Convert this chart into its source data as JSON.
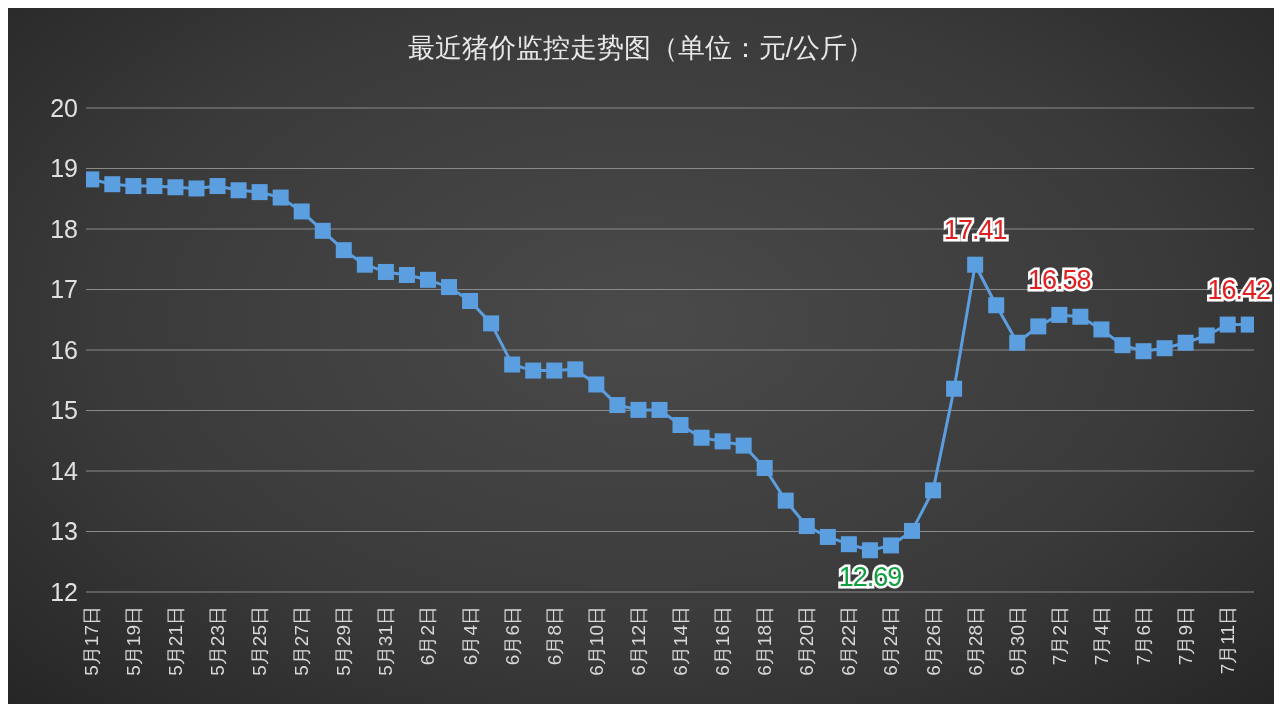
{
  "chart_data": {
    "type": "line",
    "title": "最近猪价监控走势图（单位：元/公斤）",
    "categories": [
      "5月17日",
      null,
      "5月19日",
      null,
      "5月21日",
      null,
      "5月23日",
      null,
      "5月25日",
      null,
      "5月27日",
      null,
      "5月29日",
      null,
      "5月31日",
      null,
      "6月2日",
      null,
      "6月4日",
      null,
      "6月6日",
      null,
      "6月8日",
      null,
      "6月10日",
      null,
      "6月12日",
      null,
      "6月14日",
      null,
      "6月16日",
      null,
      "6月18日",
      null,
      "6月20日",
      null,
      "6月22日",
      null,
      "6月24日",
      null,
      "6月26日",
      null,
      "6月28日",
      null,
      "6月30日",
      null,
      "7月2日",
      null,
      "7月4日",
      null,
      "7月6日",
      null,
      "7月9日",
      null,
      "7月11日",
      null
    ],
    "series": [
      {
        "color": "#5b9fe0",
        "values": [
          18.82,
          18.74,
          18.71,
          18.71,
          18.69,
          18.67,
          18.71,
          18.64,
          18.61,
          18.52,
          18.29,
          17.97,
          17.65,
          17.41,
          17.29,
          17.24,
          17.16,
          17.04,
          16.81,
          16.44,
          15.76,
          15.66,
          15.66,
          15.68,
          15.43,
          15.09,
          15.01,
          15.01,
          14.76,
          14.55,
          14.49,
          14.42,
          14.05,
          13.51,
          13.09,
          12.91,
          12.79,
          12.69,
          12.77,
          13.01,
          13.68,
          15.36,
          17.41,
          16.74,
          16.12,
          16.39,
          16.58,
          16.55,
          16.34,
          16.08,
          15.98,
          16.03,
          16.12,
          16.24,
          16.42,
          16.42
        ],
        "value_labels": [
          null,
          null,
          null,
          null,
          null,
          null,
          null,
          null,
          null,
          null,
          null,
          null,
          null,
          null,
          null,
          null,
          null,
          null,
          null,
          null,
          null,
          null,
          null,
          null,
          null,
          null,
          null,
          null,
          null,
          null,
          null,
          null,
          null,
          null,
          null,
          null,
          null,
          "12.69",
          null,
          null,
          null,
          null,
          "17.41",
          null,
          null,
          null,
          "16.58",
          null,
          null,
          null,
          null,
          null,
          null,
          null,
          null,
          "16.42"
        ]
      }
    ],
    "ylim": [
      12,
      20
    ],
    "yticks": [
      12,
      13,
      14,
      15,
      16,
      17,
      18,
      19,
      20
    ],
    "grid": "y",
    "marker": "square",
    "line_style": "solid"
  }
}
